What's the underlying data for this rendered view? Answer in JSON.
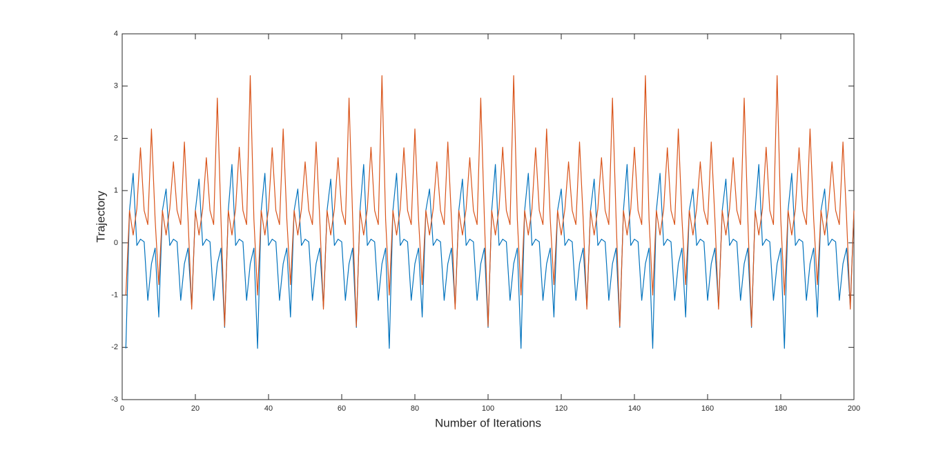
{
  "chart_data": {
    "type": "line",
    "xlabel": "Number of Iterations",
    "ylabel": "Trajectory",
    "x": [
      1,
      2,
      3,
      4,
      5,
      6,
      7,
      8,
      9,
      10,
      11,
      12,
      13,
      14,
      15,
      16,
      17,
      18,
      19,
      20,
      21,
      22,
      23,
      24,
      25,
      26,
      27,
      28,
      29,
      30,
      31,
      32,
      33,
      34,
      35,
      36,
      37,
      38,
      39,
      40,
      41,
      42,
      43,
      44,
      45,
      46,
      47,
      48,
      49,
      50,
      51,
      52,
      53,
      54,
      55,
      56,
      57,
      58,
      59,
      60,
      61,
      62,
      63,
      64,
      65,
      66,
      67,
      68,
      69,
      70,
      71,
      72,
      73,
      74,
      75,
      76,
      77,
      78,
      79,
      80,
      81,
      82,
      83,
      84,
      85,
      86,
      87,
      88,
      89,
      90,
      91,
      92,
      93,
      94,
      95,
      96,
      97,
      98,
      99,
      100,
      101,
      102,
      103,
      104,
      105,
      106,
      107,
      108,
      109,
      110,
      111,
      112,
      113,
      114,
      115,
      116,
      117,
      118,
      119,
      120,
      121,
      122,
      123,
      124,
      125,
      126,
      127,
      128,
      129,
      130,
      131,
      132,
      133,
      134,
      135,
      136,
      137,
      138,
      139,
      140,
      141,
      142,
      143,
      144,
      145,
      146,
      147,
      148,
      149,
      150,
      151,
      152,
      153,
      154,
      155,
      156,
      157,
      158,
      159,
      160,
      161,
      162,
      163,
      164,
      165,
      166,
      167,
      168,
      169,
      170,
      171,
      172,
      173,
      174,
      175,
      176,
      177,
      178,
      179,
      180,
      181,
      182,
      183,
      184,
      185,
      186,
      187,
      188,
      189,
      190,
      191,
      192,
      193,
      194,
      195,
      196,
      197,
      198,
      199,
      200
    ],
    "series": [
      {
        "color": "#0072bd",
        "values": [
          -2.02,
          0.62,
          1.33,
          -0.05,
          0.07,
          0.02,
          -1.1,
          -0.4,
          -0.1,
          -1.42,
          0.62,
          1.03,
          -0.05,
          0.07,
          0.02,
          -1.1,
          -0.4,
          -0.1,
          -1.22,
          0.62,
          1.22,
          -0.05,
          0.07,
          0.02,
          -1.1,
          -0.4,
          -0.1,
          -1.62,
          0.62,
          1.5,
          -0.05,
          0.07,
          0.02,
          -1.1,
          -0.4,
          -0.1,
          -2.02,
          0.62,
          1.33,
          -0.05,
          0.07,
          0.02,
          -1.1,
          -0.4,
          -0.1,
          -1.42,
          0.62,
          1.03,
          -0.05,
          0.07,
          0.02,
          -1.1,
          -0.4,
          -0.1,
          -1.22,
          0.62,
          1.22,
          -0.05,
          0.07,
          0.02,
          -1.1,
          -0.4,
          -0.1,
          -1.62,
          0.62,
          1.5,
          -0.05,
          0.07,
          0.02,
          -1.1,
          -0.4,
          -0.1,
          -2.02,
          0.62,
          1.33,
          -0.05,
          0.07,
          0.02,
          -1.1,
          -0.4,
          -0.1,
          -1.42,
          0.62,
          1.03,
          -0.05,
          0.07,
          0.02,
          -1.1,
          -0.4,
          -0.1,
          -1.22,
          0.62,
          1.22,
          -0.05,
          0.07,
          0.02,
          -1.1,
          -0.4,
          -0.1,
          -1.62,
          0.62,
          1.5,
          -0.05,
          0.07,
          0.02,
          -1.1,
          -0.4,
          -0.1,
          -2.02,
          0.62,
          1.33,
          -0.05,
          0.07,
          0.02,
          -1.1,
          -0.4,
          -0.1,
          -1.42,
          0.62,
          1.03,
          -0.05,
          0.07,
          0.02,
          -1.1,
          -0.4,
          -0.1,
          -1.22,
          0.62,
          1.22,
          -0.05,
          0.07,
          0.02,
          -1.1,
          -0.4,
          -0.1,
          -1.62,
          0.62,
          1.5,
          -0.05,
          0.07,
          0.02,
          -1.1,
          -0.4,
          -0.1,
          -2.02,
          0.62,
          1.33,
          -0.05,
          0.07,
          0.02,
          -1.1,
          -0.4,
          -0.1,
          -1.42,
          0.62,
          1.03,
          -0.05,
          0.07,
          0.02,
          -1.1,
          -0.4,
          -0.1,
          -1.22,
          0.62,
          1.22,
          -0.05,
          0.07,
          0.02,
          -1.1,
          -0.4,
          -0.1,
          -1.62,
          0.62,
          1.5,
          -0.05,
          0.07,
          0.02,
          -1.1,
          -0.4,
          -0.1,
          -2.02,
          0.62,
          1.33,
          -0.05,
          0.07,
          0.02,
          -1.1,
          -0.4,
          -0.1,
          -1.42,
          0.62,
          1.03,
          -0.05,
          0.07,
          0.02,
          -1.1,
          -0.4,
          -0.1,
          -1.22,
          0.62
        ]
      },
      {
        "color": "#d95319",
        "values": [
          -1,
          0.62,
          0.15,
          0.65,
          1.82,
          0.62,
          0.35,
          2.18,
          0.45,
          -0.8,
          0.62,
          0.15,
          0.65,
          1.55,
          0.62,
          0.35,
          1.93,
          0.45,
          -1.27,
          0.62,
          0.15,
          0.65,
          1.63,
          0.62,
          0.35,
          2.77,
          0.45,
          -1.6,
          0.62,
          0.15,
          0.65,
          1.83,
          0.62,
          0.35,
          3.2,
          0.45,
          -1,
          0.62,
          0.15,
          0.65,
          1.82,
          0.62,
          0.35,
          2.18,
          0.45,
          -0.8,
          0.62,
          0.15,
          0.65,
          1.55,
          0.62,
          0.35,
          1.93,
          0.45,
          -1.27,
          0.62,
          0.15,
          0.65,
          1.63,
          0.62,
          0.35,
          2.77,
          0.45,
          -1.6,
          0.62,
          0.15,
          0.65,
          1.83,
          0.62,
          0.35,
          3.2,
          0.45,
          -1,
          0.62,
          0.15,
          0.65,
          1.82,
          0.62,
          0.35,
          2.18,
          0.45,
          -0.8,
          0.62,
          0.15,
          0.65,
          1.55,
          0.62,
          0.35,
          1.93,
          0.45,
          -1.27,
          0.62,
          0.15,
          0.65,
          1.63,
          0.62,
          0.35,
          2.77,
          0.45,
          -1.6,
          0.62,
          0.15,
          0.65,
          1.83,
          0.62,
          0.35,
          3.2,
          0.45,
          -1,
          0.62,
          0.15,
          0.65,
          1.82,
          0.62,
          0.35,
          2.18,
          0.45,
          -0.8,
          0.62,
          0.15,
          0.65,
          1.55,
          0.62,
          0.35,
          1.93,
          0.45,
          -1.27,
          0.62,
          0.15,
          0.65,
          1.63,
          0.62,
          0.35,
          2.77,
          0.45,
          -1.6,
          0.62,
          0.15,
          0.65,
          1.83,
          0.62,
          0.35,
          3.2,
          0.45,
          -1,
          0.62,
          0.15,
          0.65,
          1.82,
          0.62,
          0.35,
          2.18,
          0.45,
          -0.8,
          0.62,
          0.15,
          0.65,
          1.55,
          0.62,
          0.35,
          1.93,
          0.45,
          -1.27,
          0.62,
          0.15,
          0.65,
          1.63,
          0.62,
          0.35,
          2.77,
          0.45,
          -1.6,
          0.62,
          0.15,
          0.65,
          1.83,
          0.62,
          0.35,
          3.2,
          0.45,
          -1,
          0.62,
          0.15,
          0.65,
          1.82,
          0.62,
          0.35,
          2.18,
          0.45,
          -0.8,
          0.62,
          0.15,
          0.65,
          1.55,
          0.62,
          0.35,
          1.93,
          0.45,
          -1.27,
          0.62
        ]
      }
    ],
    "xlim": [
      0,
      200
    ],
    "xticks": [
      0,
      20,
      40,
      60,
      80,
      100,
      120,
      140,
      160,
      180,
      200
    ],
    "ylim": [
      -3,
      4
    ],
    "yticks": [
      -3,
      -2,
      -1,
      0,
      1,
      2,
      3,
      4
    ]
  }
}
